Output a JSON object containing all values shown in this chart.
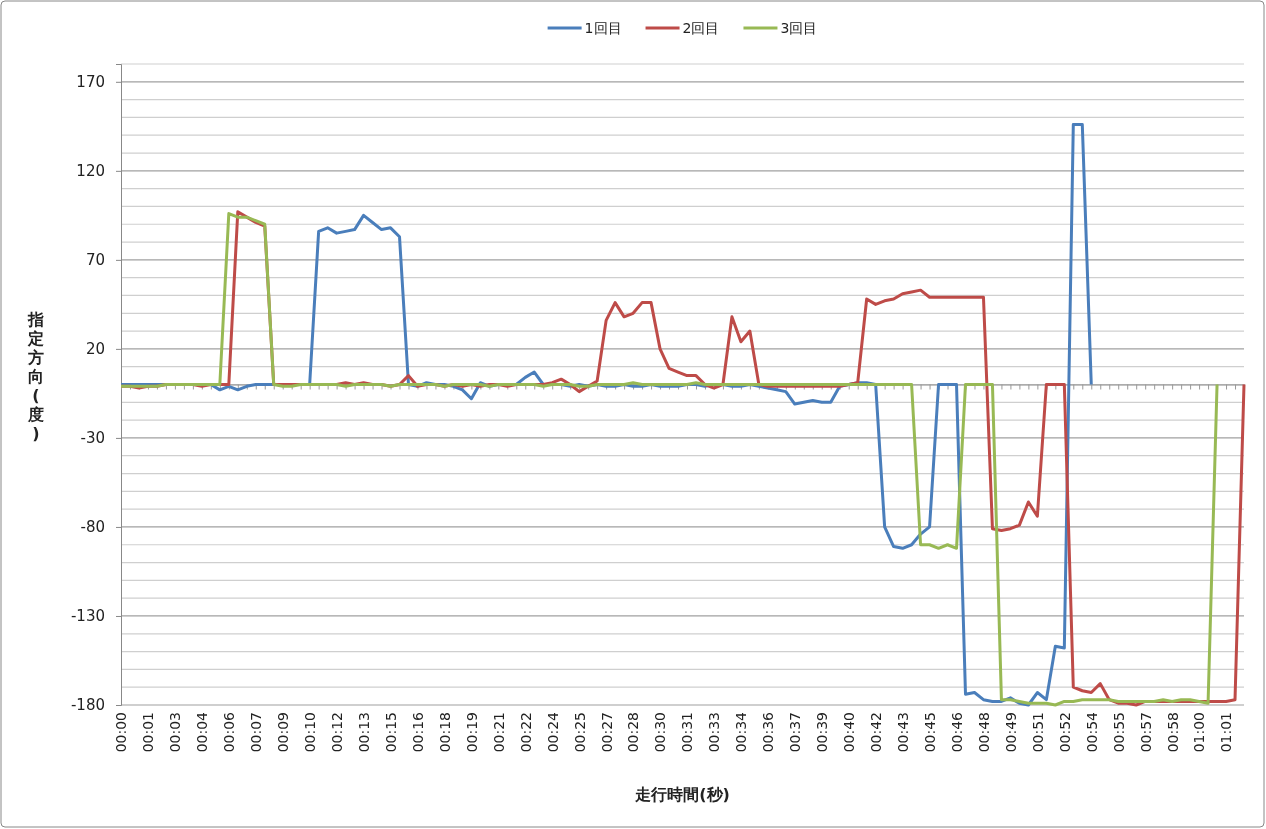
{
  "chart_data": {
    "type": "line",
    "xlabel": "走行時間(秒)",
    "ylabel": "指定方向(度)",
    "categories": [
      "00:00",
      null,
      null,
      "00:01",
      null,
      null,
      "00:03",
      null,
      null,
      "00:04",
      null,
      null,
      "00:06",
      null,
      null,
      "00:07",
      null,
      null,
      "00:09",
      null,
      null,
      "00:10",
      null,
      null,
      "00:12",
      null,
      null,
      "00:13",
      null,
      null,
      "00:15",
      null,
      null,
      "00:16",
      null,
      null,
      "00:18",
      null,
      null,
      "00:19",
      null,
      null,
      "00:21",
      null,
      null,
      "00:22",
      null,
      null,
      "00:24",
      null,
      null,
      "00:25",
      null,
      null,
      "00:27",
      null,
      null,
      "00:28",
      null,
      null,
      "00:30",
      null,
      null,
      "00:31",
      null,
      null,
      "00:33",
      null,
      null,
      "00:34",
      null,
      null,
      "00:36",
      null,
      null,
      "00:37",
      null,
      null,
      "00:39",
      null,
      null,
      "00:40",
      null,
      null,
      "00:42",
      null,
      null,
      "00:43",
      null,
      null,
      "00:45",
      null,
      null,
      "00:46",
      null,
      null,
      "00:48",
      null,
      null,
      "00:49",
      null,
      null,
      "00:51",
      null,
      null,
      "00:52",
      null,
      null,
      "00:54",
      null,
      null,
      "00:55",
      null,
      null,
      "00:57",
      null,
      null,
      "00:58",
      null,
      null,
      "01:00",
      null,
      null,
      "01:01",
      null,
      null
    ],
    "series": [
      {
        "name": "1回目",
        "color": "#4a7ebb",
        "values": [
          0,
          0,
          0,
          0,
          0,
          0,
          0,
          0,
          0,
          0,
          0,
          -3,
          -1,
          -3,
          -1,
          0,
          0,
          0,
          0,
          0,
          0,
          0,
          86,
          88,
          85,
          86,
          87,
          95,
          91,
          87,
          88,
          83,
          0,
          -1,
          1,
          0,
          0,
          -1,
          -3,
          -8,
          1,
          -1,
          0,
          0,
          0,
          4,
          7,
          0,
          0,
          0,
          -1,
          0,
          -1,
          0,
          -1,
          -1,
          0,
          -1,
          -1,
          0,
          -1,
          -1,
          -1,
          0,
          0,
          -1,
          0,
          0,
          -1,
          -1,
          0,
          -1,
          -2,
          -3,
          -4,
          -11,
          -10,
          -9,
          -10,
          -10,
          -1,
          0,
          1,
          1,
          0,
          -80,
          -91,
          -92,
          -90,
          -84,
          -80,
          0,
          0,
          0,
          -174,
          -173,
          -177,
          -178,
          -178,
          -176,
          -179,
          -180,
          -173,
          -177,
          -147,
          -148,
          146,
          146,
          0,
          null,
          null,
          null,
          null,
          null,
          null,
          null,
          null,
          null,
          null,
          null,
          null,
          null,
          null,
          null,
          null,
          null
        ]
      },
      {
        "name": "2回目",
        "color": "#be4b48",
        "values": [
          -1,
          -1,
          -2,
          -1,
          -1,
          0,
          0,
          0,
          0,
          -1,
          0,
          0,
          0,
          97,
          94,
          91,
          89,
          0,
          0,
          0,
          0,
          0,
          0,
          0,
          0,
          1,
          0,
          1,
          0,
          0,
          -1,
          0,
          5,
          -1,
          0,
          0,
          -1,
          0,
          -1,
          0,
          -1,
          0,
          0,
          -1,
          0,
          0,
          0,
          0,
          1,
          3,
          0,
          -4,
          -1,
          2,
          36,
          46,
          38,
          40,
          46,
          46,
          20,
          9,
          7,
          5,
          5,
          0,
          -2,
          0,
          38,
          24,
          30,
          0,
          -1,
          -1,
          -1,
          -1,
          -1,
          -1,
          -1,
          -1,
          -1,
          0,
          1,
          48,
          45,
          47,
          48,
          51,
          52,
          53,
          49,
          49,
          49,
          49,
          49,
          49,
          49,
          -81,
          -82,
          -81,
          -79,
          -66,
          -74,
          0,
          0,
          0,
          -170,
          -172,
          -173,
          -168,
          -177,
          -179,
          -179,
          -180,
          -178,
          -178,
          -178,
          -178,
          -178,
          -178,
          -178,
          -178,
          -178,
          -178,
          -177,
          0
        ]
      },
      {
        "name": "3回目",
        "color": "#98b954",
        "values": [
          -1,
          -1,
          -1,
          -1,
          -1,
          0,
          0,
          0,
          0,
          0,
          0,
          0,
          96,
          94,
          94,
          92,
          90,
          0,
          -1,
          -1,
          0,
          0,
          0,
          0,
          0,
          -1,
          0,
          0,
          0,
          0,
          -1,
          0,
          0,
          0,
          0,
          0,
          -1,
          0,
          0,
          0,
          0,
          -1,
          0,
          0,
          0,
          0,
          0,
          -1,
          0,
          0,
          0,
          -1,
          -1,
          0,
          0,
          0,
          0,
          1,
          0,
          0,
          0,
          0,
          0,
          0,
          1,
          0,
          0,
          0,
          0,
          0,
          0,
          0,
          0,
          0,
          0,
          0,
          0,
          0,
          0,
          0,
          0,
          0,
          0,
          0,
          0,
          0,
          0,
          0,
          0,
          -90,
          -90,
          -92,
          -90,
          -92,
          0,
          0,
          0,
          0,
          -177,
          -177,
          -178,
          -179,
          -179,
          -179,
          -180,
          -178,
          -178,
          -177,
          -177,
          -177,
          -177,
          -178,
          -178,
          -178,
          -178,
          -178,
          -177,
          -178,
          -177,
          -177,
          -178,
          -179,
          0,
          null,
          null,
          null
        ]
      }
    ],
    "ylim": [
      -180,
      180
    ],
    "yticks": [
      -180,
      {
        "value": -170,
        "label": null
      },
      {
        "value": -160,
        "label": null
      },
      {
        "value": -150,
        "label": null
      },
      {
        "value": -140,
        "label": null
      },
      -130,
      {
        "value": -120,
        "label": null
      },
      {
        "value": -110,
        "label": null
      },
      {
        "value": -100,
        "label": null
      },
      {
        "value": -90,
        "label": null
      },
      -80,
      {
        "value": -70,
        "label": null
      },
      {
        "value": -60,
        "label": null
      },
      {
        "value": -50,
        "label": null
      },
      {
        "value": -40,
        "label": null
      },
      -30,
      {
        "value": -20,
        "label": null
      },
      {
        "value": -10,
        "label": null
      },
      {
        "value": 0,
        "label": null
      },
      {
        "value": 10,
        "label": null
      },
      20,
      {
        "value": 30,
        "label": null
      },
      {
        "value": 40,
        "label": null
      },
      {
        "value": 50,
        "label": null
      },
      {
        "value": 60,
        "label": null
      },
      70,
      {
        "value": 80,
        "label": null
      },
      {
        "value": 90,
        "label": null
      },
      {
        "value": 100,
        "label": null
      },
      {
        "value": 110,
        "label": null
      },
      120,
      {
        "value": 130,
        "label": null
      },
      {
        "value": 140,
        "label": null
      },
      {
        "value": 150,
        "label": null
      },
      {
        "value": 160,
        "label": null
      },
      170,
      {
        "value": 180,
        "label": null
      }
    ],
    "grid": "y",
    "legend": "top",
    "marker": "none",
    "line_style": "solid"
  }
}
